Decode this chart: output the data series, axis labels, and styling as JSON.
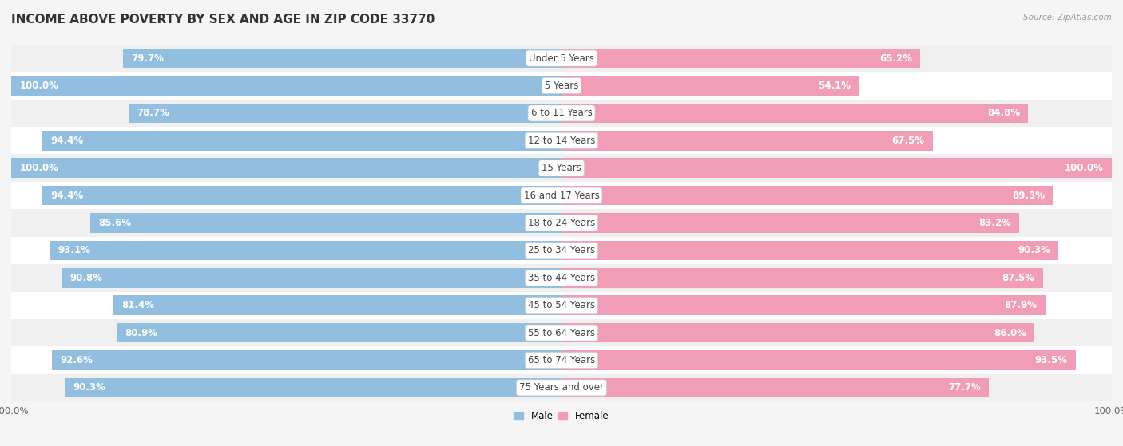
{
  "title": "INCOME ABOVE POVERTY BY SEX AND AGE IN ZIP CODE 33770",
  "source": "Source: ZipAtlas.com",
  "categories": [
    "Under 5 Years",
    "5 Years",
    "6 to 11 Years",
    "12 to 14 Years",
    "15 Years",
    "16 and 17 Years",
    "18 to 24 Years",
    "25 to 34 Years",
    "35 to 44 Years",
    "45 to 54 Years",
    "55 to 64 Years",
    "65 to 74 Years",
    "75 Years and over"
  ],
  "male_values": [
    79.7,
    100.0,
    78.7,
    94.4,
    100.0,
    94.4,
    85.6,
    93.1,
    90.8,
    81.4,
    80.9,
    92.6,
    90.3
  ],
  "female_values": [
    65.2,
    54.1,
    84.8,
    67.5,
    100.0,
    89.3,
    83.2,
    90.3,
    87.5,
    87.9,
    86.0,
    93.5,
    77.7
  ],
  "male_color": "#92BEE0",
  "female_color": "#F09DB5",
  "row_even_color": "#f0f0f0",
  "row_odd_color": "#ffffff",
  "title_fontsize": 11,
  "label_fontsize": 8.5,
  "value_fontsize": 8.5,
  "axis_label_fontsize": 8.5,
  "legend_labels": [
    "Male",
    "Female"
  ],
  "background_color": "#f5f5f5"
}
